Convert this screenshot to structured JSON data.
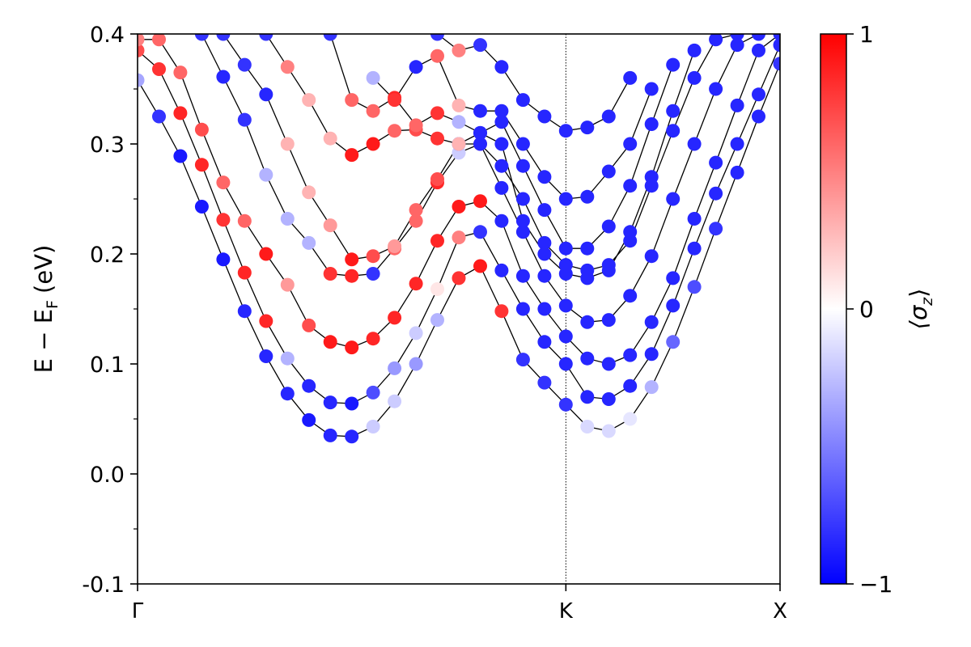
{
  "chart_data": {
    "type": "scatter",
    "ylabel": "E − E_F (eV)",
    "ylabel_main": "E − E",
    "ylabel_sub": "F",
    "ylabel_unit": "(eV)",
    "ylim": [
      -0.1,
      0.4
    ],
    "yticks": [
      -0.1,
      0.0,
      0.1,
      0.2,
      0.3,
      0.4
    ],
    "ytick_labels": [
      "-0.1",
      "0.0",
      "0.1",
      "0.2",
      "0.3",
      "0.4"
    ],
    "xlim": [
      0,
      3
    ],
    "xticks": [
      0,
      2,
      3
    ],
    "xtick_labels": [
      "Γ",
      "K",
      "X"
    ],
    "vertical_line_at": 2,
    "colorbar": {
      "label": "⟨σz⟩",
      "label_main": "⟨σ",
      "label_sub": "z",
      "label_close": "⟩",
      "range": [
        -1,
        1
      ],
      "ticks": [
        -1,
        0,
        1
      ],
      "tick_labels": [
        "−1",
        "0",
        "1"
      ],
      "colors": {
        "low": "#0000ff",
        "mid": "#ffffff",
        "high": "#ff0000"
      }
    },
    "series": [
      {
        "x": [
          0.0,
          0.1,
          0.2,
          0.3,
          0.4,
          0.5,
          0.6,
          0.7,
          0.8,
          0.9,
          1.0,
          1.1,
          1.2,
          1.3,
          1.4,
          1.5,
          1.6,
          1.7,
          1.8,
          1.9,
          2.0,
          2.1,
          2.2,
          2.3,
          2.4,
          2.5,
          2.6,
          2.7,
          2.8,
          2.9,
          3.0
        ],
        "y": [
          0.358,
          0.325,
          0.289,
          0.243,
          0.195,
          0.148,
          0.107,
          0.073,
          0.049,
          0.035,
          0.034,
          0.043,
          0.066,
          0.1,
          0.14,
          0.178,
          0.189,
          0.148,
          0.104,
          0.083,
          0.063,
          0.043,
          0.039,
          0.05,
          0.079,
          0.12,
          0.17,
          0.223,
          0.274,
          0.325,
          0.373
        ],
        "sz": [
          -0.35,
          -0.8,
          -0.9,
          -0.9,
          -0.9,
          -0.85,
          -0.85,
          -0.85,
          -0.9,
          -0.85,
          -0.85,
          -0.2,
          -0.2,
          -0.4,
          -0.3,
          0.8,
          0.9,
          0.8,
          -0.8,
          -0.8,
          -0.8,
          -0.15,
          -0.15,
          -0.1,
          -0.3,
          -0.6,
          -0.7,
          -0.8,
          -0.85,
          -0.85,
          -0.8
        ]
      },
      {
        "x": [
          0.0,
          0.1,
          0.2,
          0.3,
          0.4,
          0.5,
          0.6,
          0.7,
          0.8,
          0.9,
          1.0,
          1.1,
          1.2,
          1.3,
          1.4,
          1.5,
          1.6,
          1.7,
          1.8,
          1.9,
          2.0,
          2.1,
          2.2,
          2.3,
          2.4,
          2.5,
          2.6,
          2.7,
          2.8,
          2.9,
          3.0
        ],
        "y": [
          0.385,
          0.368,
          0.328,
          0.281,
          0.231,
          0.183,
          0.139,
          0.105,
          0.08,
          0.065,
          0.064,
          0.074,
          0.096,
          0.128,
          0.168,
          0.215,
          0.22,
          0.185,
          0.15,
          0.12,
          0.1,
          0.07,
          0.068,
          0.08,
          0.109,
          0.153,
          0.205,
          0.255,
          0.3,
          0.345,
          0.39
        ],
        "sz": [
          0.7,
          0.8,
          0.85,
          0.85,
          0.8,
          0.85,
          0.85,
          -0.3,
          -0.85,
          -0.85,
          -0.9,
          -0.7,
          -0.4,
          -0.2,
          0.1,
          0.5,
          -0.8,
          -0.85,
          -0.85,
          -0.85,
          -0.85,
          -0.85,
          -0.85,
          -0.85,
          -0.85,
          -0.85,
          -0.85,
          -0.85,
          -0.85,
          -0.85,
          -0.85
        ]
      },
      {
        "x": [
          0.0,
          0.1,
          0.2,
          0.3,
          0.4,
          0.5,
          0.6,
          0.7,
          0.8,
          0.9,
          1.0,
          1.1,
          1.2,
          1.3,
          1.4,
          1.5,
          1.6,
          1.7,
          1.8,
          1.9,
          2.0,
          2.1,
          2.2,
          2.3,
          2.4,
          2.5,
          2.6,
          2.7,
          2.8,
          2.9,
          3.0
        ],
        "y": [
          0.395,
          0.395,
          0.365,
          0.313,
          0.265,
          0.23,
          0.2,
          0.172,
          0.135,
          0.12,
          0.115,
          0.123,
          0.142,
          0.173,
          0.212,
          0.243,
          0.248,
          0.23,
          0.18,
          0.15,
          0.125,
          0.105,
          0.1,
          0.108,
          0.138,
          0.178,
          0.232,
          0.283,
          0.335,
          0.385,
          0.4
        ],
        "sz": [
          0.5,
          0.6,
          0.6,
          0.7,
          0.6,
          0.6,
          0.9,
          0.4,
          0.7,
          0.9,
          0.9,
          0.85,
          0.85,
          0.85,
          0.85,
          0.9,
          0.9,
          -0.85,
          -0.85,
          -0.85,
          -0.85,
          -0.85,
          -0.85,
          -0.85,
          -0.85,
          -0.85,
          -0.85,
          -0.85,
          -0.85,
          -0.85,
          -0.85
        ]
      },
      {
        "x": [
          0.3,
          0.4,
          0.5,
          0.6,
          0.7,
          0.8,
          0.9,
          1.0,
          1.1,
          1.2,
          1.3,
          1.4,
          1.5,
          1.6,
          1.7,
          1.8,
          1.9,
          2.0,
          2.1,
          2.2,
          2.3,
          2.4,
          2.5,
          2.6,
          2.7,
          2.8,
          2.9
        ],
        "y": [
          0.4,
          0.361,
          0.322,
          0.272,
          0.232,
          0.21,
          0.182,
          0.18,
          0.182,
          0.205,
          0.23,
          0.265,
          0.292,
          0.3,
          0.26,
          0.22,
          0.18,
          0.153,
          0.138,
          0.14,
          0.162,
          0.198,
          0.25,
          0.3,
          0.35,
          0.39,
          0.4
        ],
        "sz": [
          -0.8,
          -0.85,
          -0.8,
          -0.3,
          -0.3,
          -0.3,
          0.8,
          0.85,
          -0.8,
          0.6,
          0.6,
          0.85,
          -0.2,
          0.5,
          -0.85,
          -0.85,
          -0.85,
          -0.85,
          -0.85,
          -0.85,
          -0.85,
          -0.85,
          -0.85,
          -0.85,
          -0.85,
          -0.85,
          -0.85
        ]
      },
      {
        "x": [
          0.4,
          0.5,
          0.6,
          0.7,
          0.8,
          0.9,
          1.0,
          1.1,
          1.2,
          1.3,
          1.4,
          1.5,
          1.6,
          1.7,
          1.8,
          1.9,
          2.0,
          2.1,
          2.2,
          2.3,
          2.4,
          2.5,
          2.6,
          2.7,
          2.8
        ],
        "y": [
          0.4,
          0.372,
          0.345,
          0.3,
          0.256,
          0.226,
          0.195,
          0.198,
          0.207,
          0.24,
          0.268,
          0.3,
          0.3,
          0.28,
          0.25,
          0.21,
          0.19,
          0.185,
          0.19,
          0.212,
          0.262,
          0.312,
          0.36,
          0.395,
          0.4
        ],
        "sz": [
          -0.8,
          -0.8,
          -0.85,
          0.3,
          0.3,
          0.4,
          0.9,
          0.7,
          0.4,
          0.6,
          0.7,
          -0.8,
          -0.85,
          -0.85,
          -0.85,
          -0.85,
          -0.85,
          -0.85,
          -0.85,
          -0.85,
          -0.85,
          -0.85,
          -0.85,
          -0.85,
          -0.85
        ]
      },
      {
        "x": [
          0.6,
          0.7,
          0.8,
          0.9,
          1.0,
          1.1,
          1.2,
          1.3,
          1.4,
          1.5,
          1.6,
          1.7,
          1.8,
          1.9,
          2.0,
          2.1,
          2.2,
          2.3,
          2.4,
          2.5,
          2.6
        ],
        "y": [
          0.4,
          0.37,
          0.34,
          0.305,
          0.29,
          0.3,
          0.312,
          0.313,
          0.305,
          0.3,
          0.31,
          0.3,
          0.23,
          0.2,
          0.182,
          0.178,
          0.185,
          0.22,
          0.27,
          0.33,
          0.385
        ],
        "sz": [
          -0.8,
          0.5,
          0.3,
          0.3,
          0.9,
          0.9,
          0.6,
          0.7,
          0.8,
          0.3,
          -0.85,
          -0.85,
          -0.85,
          -0.85,
          -0.85,
          -0.85,
          -0.85,
          -0.85,
          -0.85,
          -0.85,
          -0.85
        ]
      },
      {
        "x": [
          0.9,
          1.0,
          1.1,
          1.2,
          1.3,
          1.4,
          1.5,
          1.6,
          1.7,
          1.8,
          1.9,
          2.0,
          2.1,
          2.2,
          2.3,
          2.4,
          2.5
        ],
        "y": [
          0.4,
          0.34,
          0.33,
          0.342,
          0.317,
          0.328,
          0.32,
          0.31,
          0.32,
          0.28,
          0.24,
          0.205,
          0.205,
          0.225,
          0.262,
          0.318,
          0.372
        ],
        "sz": [
          -0.8,
          0.6,
          0.6,
          0.85,
          0.6,
          0.8,
          -0.3,
          -0.85,
          -0.85,
          -0.85,
          -0.85,
          -0.85,
          -0.85,
          -0.85,
          -0.85,
          -0.85,
          -0.85
        ]
      },
      {
        "x": [
          1.1,
          1.2,
          1.3,
          1.4,
          1.5,
          1.6,
          1.7,
          1.8,
          1.9,
          2.0,
          2.1,
          2.2,
          2.3,
          2.4
        ],
        "y": [
          0.36,
          0.34,
          0.37,
          0.38,
          0.335,
          0.33,
          0.33,
          0.3,
          0.27,
          0.25,
          0.252,
          0.275,
          0.3,
          0.35
        ],
        "sz": [
          -0.3,
          0.8,
          -0.85,
          0.6,
          0.3,
          -0.85,
          -0.85,
          -0.85,
          -0.85,
          -0.85,
          -0.85,
          -0.85,
          -0.85,
          -0.85
        ]
      },
      {
        "x": [
          1.4,
          1.5,
          1.6,
          1.7,
          1.8,
          1.9,
          2.0,
          2.1,
          2.2,
          2.3
        ],
        "y": [
          0.4,
          0.385,
          0.39,
          0.37,
          0.34,
          0.325,
          0.312,
          0.315,
          0.325,
          0.36
        ],
        "sz": [
          -0.8,
          0.5,
          -0.8,
          -0.85,
          -0.85,
          -0.85,
          -0.85,
          -0.85,
          -0.85,
          -0.85
        ]
      }
    ]
  }
}
